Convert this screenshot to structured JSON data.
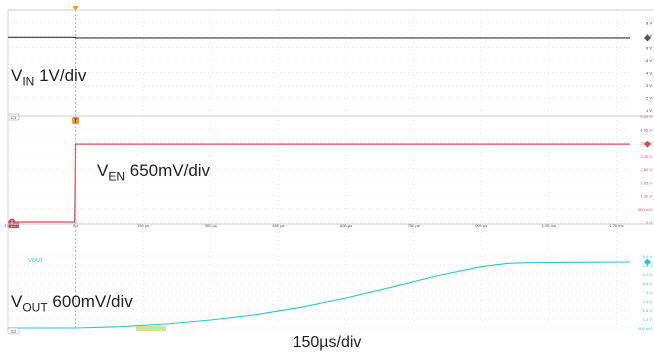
{
  "chart_data": [
    {
      "type": "line",
      "channel": "C1",
      "label": {
        "main": "V",
        "sub": "IN",
        "rest": " 1V/div"
      },
      "color": "#333333",
      "ylim": [
        0,
        8
      ],
      "ytick_labels": [
        "8 V",
        "7 V",
        "6 V",
        "5 V",
        "4 V",
        "3 V",
        "2 V",
        "1 V"
      ],
      "series": [
        {
          "x_us": [
            -150,
            0,
            0,
            1230
          ],
          "y": [
            5.9,
            5.9,
            5.85,
            5.85
          ]
        }
      ]
    },
    {
      "type": "line",
      "channel": "C3",
      "label": {
        "main": "V",
        "sub": "EN",
        "rest": " 650mV/div"
      },
      "color": "#d84a5e",
      "ylim": [
        0,
        5.2
      ],
      "ytick_labels": [
        "5.20 V",
        "4.55 V",
        "3.90 V",
        "3.25 V",
        "2.60 V",
        "1.95 V",
        "1.30 V",
        "650 mV",
        "0 V"
      ],
      "series": [
        {
          "x_us": [
            -150,
            -2,
            0,
            1230
          ],
          "y": [
            0,
            0,
            3.82,
            3.82
          ]
        }
      ]
    },
    {
      "type": "line",
      "channel": "C2",
      "label": {
        "main": "V",
        "sub": "OUT",
        "rest": " 600mV/div"
      },
      "name": "VOUT",
      "color": "#2ec4cc",
      "ylim": [
        0,
        5.4
      ],
      "ytick_labels": [
        "5.4 V",
        "4.8 V",
        "4.2 V",
        "3.6 V",
        "3 V",
        "2.4 V",
        "1.8 V",
        "1.2 V",
        "600 mV"
      ],
      "series": [
        {
          "x_us": [
            -150,
            0,
            100,
            200,
            300,
            400,
            500,
            600,
            700,
            800,
            900,
            960,
            1000,
            1100,
            1230
          ],
          "y": [
            0,
            0,
            0.1,
            0.3,
            0.6,
            1.0,
            1.55,
            2.25,
            3.05,
            3.9,
            4.6,
            4.85,
            4.9,
            4.93,
            4.95
          ]
        }
      ]
    }
  ],
  "time_axis": {
    "xlim_us": [
      -150,
      1230
    ],
    "tick_values_us": [
      -150,
      0,
      150,
      300,
      450,
      600,
      750,
      900,
      1050,
      1200
    ],
    "tick_labels": [
      "-150 µs",
      "0 s",
      "150 µs",
      "300 µs",
      "450 µs",
      "600 µs",
      "750 µs",
      "900 µs",
      "1.05 ms",
      "1.20 ms"
    ]
  },
  "time_label": "150µs/div",
  "marker_letters": {
    "trigger": "T",
    "c3": "3"
  },
  "grid": true
}
